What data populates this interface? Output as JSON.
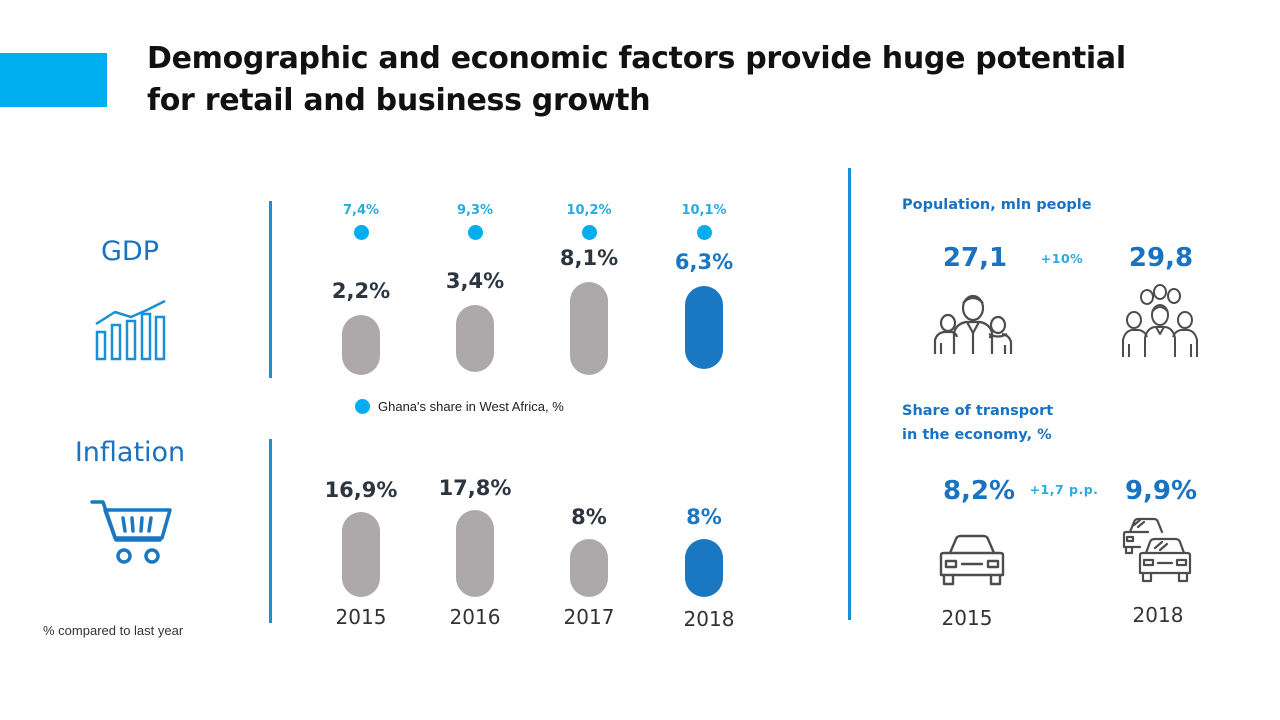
{
  "title": "Demographic and economic factors provide huge potential for retail and business growth",
  "colors": {
    "accent": "#00aeef",
    "blue": "#1a78c2",
    "gray": "#ada9aa",
    "text_dark": "#2c3540"
  },
  "gdp": {
    "label": "GDP",
    "icon": "bar-chart-icon"
  },
  "inflation": {
    "label": "Inflation",
    "icon": "shopping-cart-icon"
  },
  "legend": {
    "share_label": "Ghana's share in West Africa, %"
  },
  "footnote": "% compared to last year",
  "chart_data": [
    {
      "type": "bar",
      "name": "GDP",
      "categories": [
        "2015",
        "2016",
        "2017",
        "2018"
      ],
      "values": [
        2.2,
        3.4,
        8.1,
        6.3
      ],
      "value_labels": [
        "2,2%",
        "3,4%",
        "8,1%",
        "6,3%"
      ],
      "highlight_index": 3
    },
    {
      "type": "scatter",
      "name": "Ghana's share in West Africa, %",
      "categories": [
        "2015",
        "2016",
        "2017",
        "2018"
      ],
      "values": [
        7.4,
        9.3,
        10.2,
        10.1
      ],
      "value_labels": [
        "7,4%",
        "9,3%",
        "10,2%",
        "10,1%"
      ]
    },
    {
      "type": "bar",
      "name": "Inflation",
      "categories": [
        "2015",
        "2016",
        "2017",
        "2018"
      ],
      "values": [
        16.9,
        17.8,
        8,
        8
      ],
      "value_labels": [
        "16,9%",
        "17,8%",
        "8%",
        "8%"
      ],
      "highlight_index": 3
    }
  ],
  "population": {
    "label": "Population, mln people",
    "value_2015": "27,1",
    "value_2018": "29,8",
    "change": "+10%",
    "icon_2015": "small-group-icon",
    "icon_2018": "large-group-icon"
  },
  "transport": {
    "label_line1": "Share of transport",
    "label_line2": "in the economy, %",
    "value_2015": "8,2%",
    "value_2018": "9,9%",
    "change": "+1,7 p.p.",
    "year_2015": "2015",
    "year_2018": "2018",
    "icon_2015": "car-icon",
    "icon_2018": "cars-icon"
  }
}
